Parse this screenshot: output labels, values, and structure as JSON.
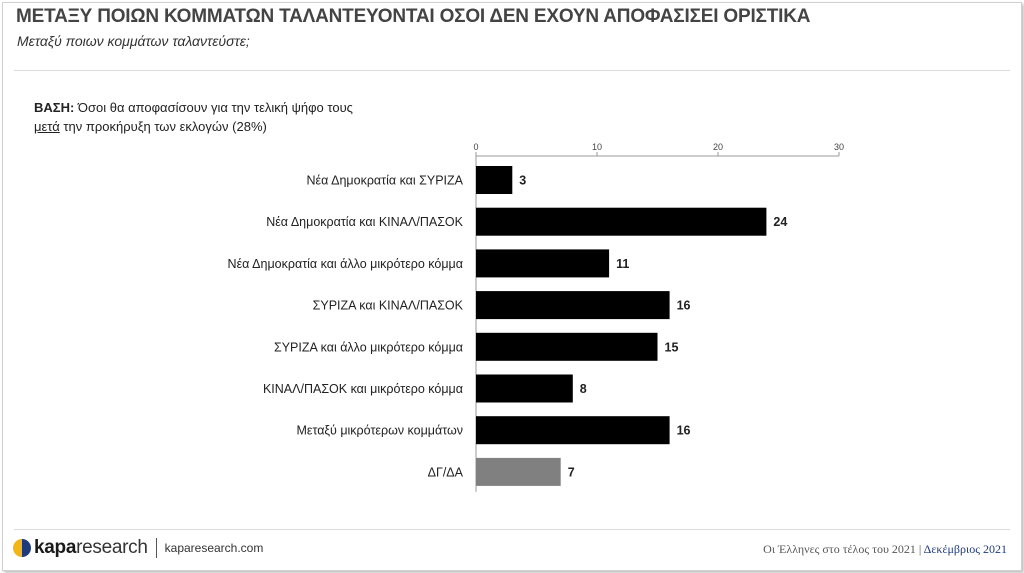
{
  "header": {
    "title": "ΜΕΤΑΞΥ ΠΟΙΩΝ ΚΟΜΜΑΤΩΝ ΤΑΛΑΝΤΕΥΟΝΤΑΙ ΟΣΟΙ ΔΕΝ ΕΧΟΥΝ ΑΠΟΦΑΣΙΣΕΙ ΟΡΙΣΤΙΚΑ",
    "subtitle": "Μεταξύ ποιων κομμάτων ταλαντεύστε;"
  },
  "base": {
    "label": "ΒΑΣΗ:",
    "line1": "Όσοι θα αποφασίσουν για την τελική ψήφο τους",
    "line2_underlined": "μετά",
    "line2_rest": "την προκήρυξη των εκλογών (28%)"
  },
  "chart_data": {
    "type": "bar",
    "orientation": "horizontal",
    "categories": [
      "Νέα Δημοκρατία και ΣΥΡΙΖΑ",
      "Νέα Δημοκρατία και ΚΙΝΑΛ/ΠΑΣΟΚ",
      "Νέα Δημοκρατία και άλλο μικρότερο κόμμα",
      "ΣΥΡΙΖΑ και ΚΙΝΑΛ/ΠΑΣΟΚ",
      "ΣΥΡΙΖΑ και άλλο μικρότερο κόμμα",
      "ΚΙΝΑΛ/ΠΑΣΟΚ και μικρότερο κόμμα",
      "Μεταξύ μικρότερων κομμάτων",
      "ΔΓ/ΔΑ"
    ],
    "values": [
      3,
      24,
      11,
      16,
      15,
      8,
      16,
      7
    ],
    "colors": [
      "#000000",
      "#000000",
      "#000000",
      "#000000",
      "#000000",
      "#000000",
      "#000000",
      "#808080"
    ],
    "xlim": [
      0,
      30
    ],
    "xticks": [
      0,
      10,
      20,
      30
    ],
    "axis_position": "top",
    "grid": false
  },
  "footer": {
    "logo_bold": "kapa",
    "logo_regular": "research",
    "url": "kaparesearch.com",
    "survey": "Οι Έλληνες στο τέλος του 2021",
    "separator": "|",
    "date": "Δεκέμβριος 2021"
  }
}
